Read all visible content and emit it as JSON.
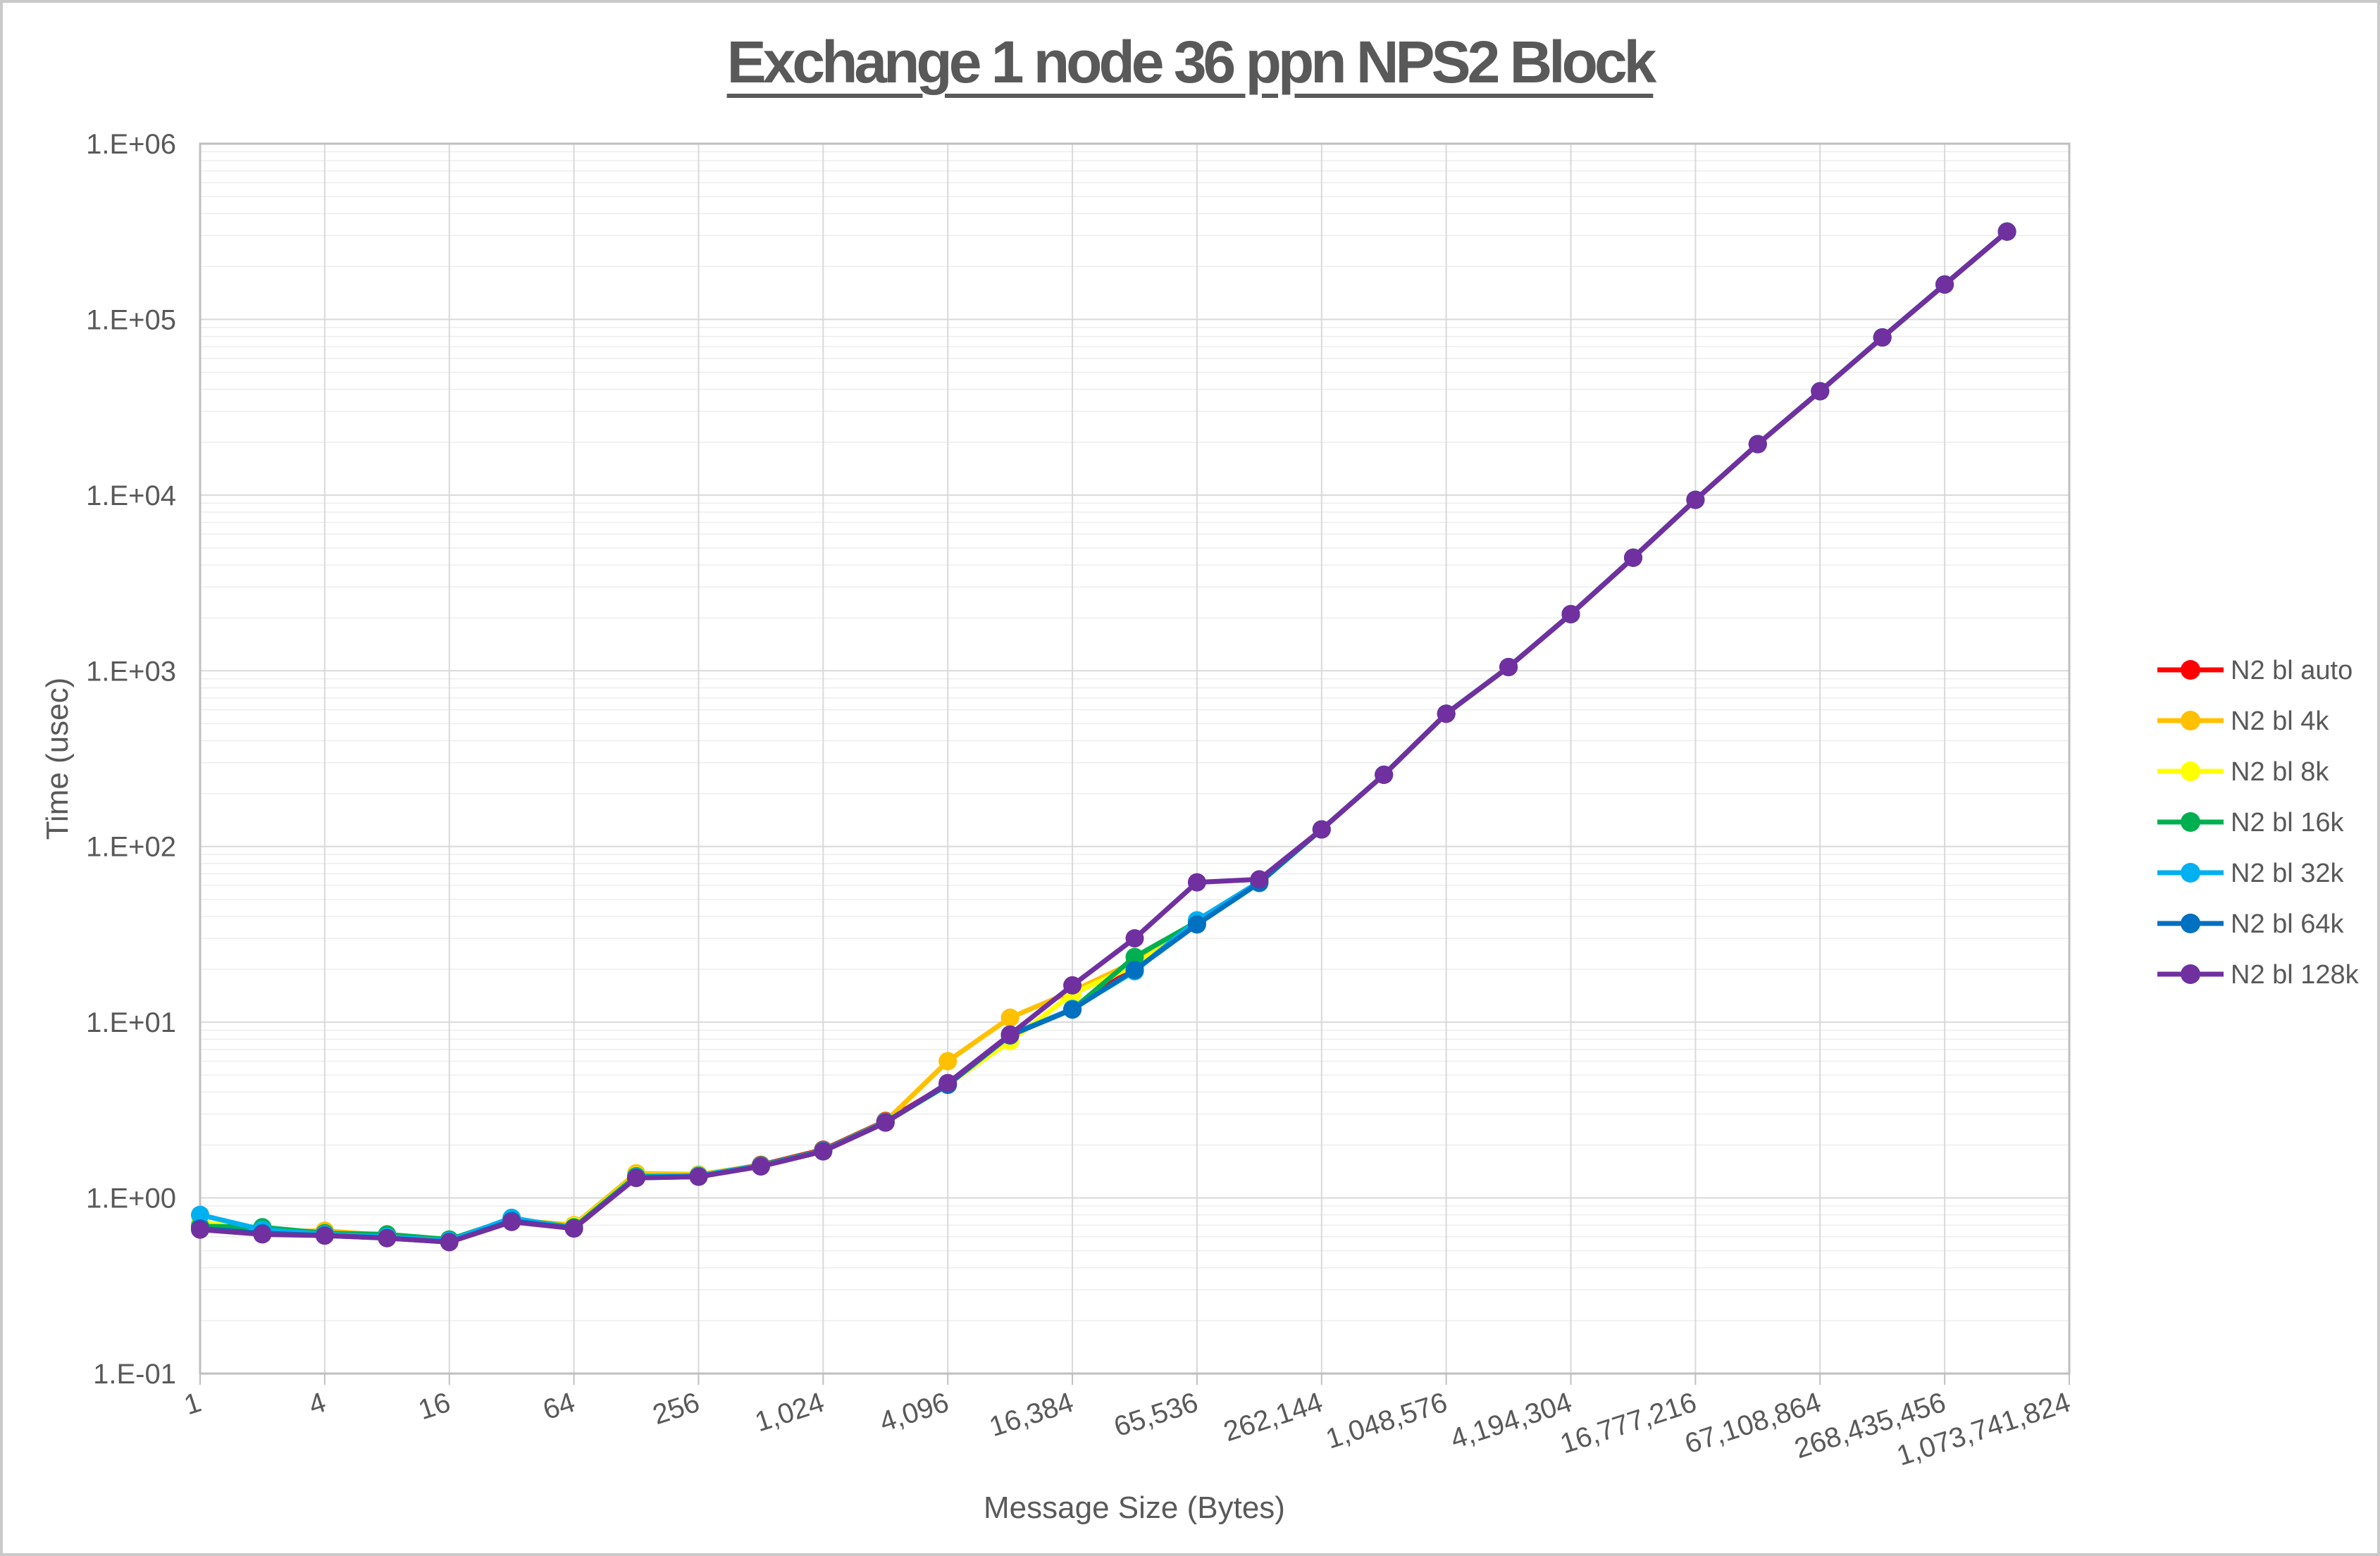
{
  "title": {
    "text": "Exchange 1 node 36 ppn NPS2 Block",
    "color": "#595959",
    "underlined": true
  },
  "axis_titles": {
    "y": "Time (usec)",
    "x": "Message Size (Bytes)"
  },
  "style_colors": {
    "text": "#595959",
    "major_grid": "#D9D9D9",
    "minor_grid": "#EDEDED",
    "axis_border": "#BFBFBF",
    "background": "#FFFFFF"
  },
  "chart_data": {
    "type": "line",
    "title": "Exchange 1 node 36 ppn NPS2 Block",
    "xlabel": "Message Size (Bytes)",
    "ylabel": "Time (usec)",
    "x_scale": "categorical powers of 2 (log-like)",
    "y_scale": "log10",
    "ylim": [
      0.1,
      1000000
    ],
    "grid": "horizontal major+minor (log), vertical major at labeled ticks",
    "legend_position": "right",
    "y_tick_labels": [
      "1.E-01",
      "1.E+00",
      "1.E+01",
      "1.E+02",
      "1.E+03",
      "1.E+04",
      "1.E+05",
      "1.E+06"
    ],
    "x_tick_labels": [
      "1",
      "4",
      "16",
      "64",
      "256",
      "1,024",
      "4,096",
      "16,384",
      "65,536",
      "262,144",
      "1,048,576",
      "4,194,304",
      "16,777,216",
      "67,108,864",
      "268,435,456",
      "1,073,741,824"
    ],
    "x_axis_last_category": 1073741824,
    "categories": [
      1,
      2,
      4,
      8,
      16,
      32,
      64,
      128,
      256,
      512,
      1024,
      2048,
      4096,
      8192,
      16384,
      32768,
      65536,
      131072,
      262144,
      524288,
      1048576,
      2097152,
      4194304,
      8388608,
      16777216,
      33554432,
      67108864,
      134217728,
      268435456,
      536870912
    ],
    "series": [
      {
        "name": "N2 bl auto",
        "color": "#FF0000",
        "values": [
          0.68,
          0.64,
          0.62,
          0.6,
          0.57,
          0.75,
          0.68,
          1.33,
          1.34,
          1.54,
          1.88,
          2.74,
          4.45,
          8.45,
          11.9,
          20.5,
          37.0,
          63,
          125,
          256,
          570,
          1050,
          2100,
          4400,
          9400,
          19500,
          39000,
          79000,
          158000,
          316000
        ]
      },
      {
        "name": "N2 bl 4k",
        "color": "#FFC000",
        "values": [
          0.7,
          0.64,
          0.65,
          0.61,
          0.57,
          0.75,
          0.7,
          1.38,
          1.36,
          1.53,
          1.86,
          2.72,
          6.0,
          10.6,
          15.0,
          22.0,
          37.5,
          63,
          125,
          256,
          570,
          1050,
          2100,
          4400,
          9400,
          19500,
          39000,
          79000,
          158000,
          316000
        ]
      },
      {
        "name": "N2 bl 8k",
        "color": "#FFFF00",
        "values": [
          0.73,
          0.65,
          0.63,
          0.6,
          0.57,
          0.74,
          0.69,
          1.34,
          1.35,
          1.52,
          1.85,
          2.7,
          4.42,
          7.8,
          14.5,
          21.0,
          37.2,
          63,
          125,
          256,
          570,
          1050,
          2100,
          4400,
          9400,
          19500,
          39000,
          79000,
          158000,
          316000
        ]
      },
      {
        "name": "N2 bl 16k",
        "color": "#00B050",
        "values": [
          0.69,
          0.68,
          0.63,
          0.62,
          0.58,
          0.76,
          0.68,
          1.33,
          1.34,
          1.53,
          1.86,
          2.71,
          4.42,
          8.5,
          11.8,
          23.5,
          37.3,
          63,
          125,
          256,
          570,
          1050,
          2100,
          4400,
          9400,
          19500,
          39000,
          79000,
          158000,
          316000
        ]
      },
      {
        "name": "N2 bl 32k",
        "color": "#00B0F0",
        "values": [
          0.8,
          0.66,
          0.62,
          0.6,
          0.57,
          0.77,
          0.67,
          1.31,
          1.34,
          1.52,
          1.85,
          2.7,
          4.41,
          8.45,
          11.9,
          19.5,
          38.0,
          63,
          125,
          256,
          570,
          1050,
          2100,
          4400,
          9400,
          19500,
          39000,
          79000,
          158000,
          316000
        ]
      },
      {
        "name": "N2 bl 64k",
        "color": "#0070C0",
        "values": [
          0.67,
          0.63,
          0.61,
          0.59,
          0.56,
          0.74,
          0.67,
          1.3,
          1.32,
          1.51,
          1.84,
          2.69,
          4.4,
          8.4,
          11.8,
          19.8,
          36.0,
          62,
          125,
          256,
          570,
          1050,
          2100,
          4400,
          9400,
          19500,
          39000,
          79000,
          158000,
          316000
        ]
      },
      {
        "name": "N2 bl 128k",
        "color": "#7030A0",
        "values": [
          0.66,
          0.62,
          0.61,
          0.59,
          0.56,
          0.73,
          0.67,
          1.3,
          1.32,
          1.51,
          1.84,
          2.68,
          4.5,
          8.5,
          16.2,
          30.0,
          62.5,
          65,
          125,
          256,
          570,
          1050,
          2100,
          4400,
          9400,
          19500,
          39000,
          79000,
          158000,
          316000
        ]
      }
    ]
  }
}
